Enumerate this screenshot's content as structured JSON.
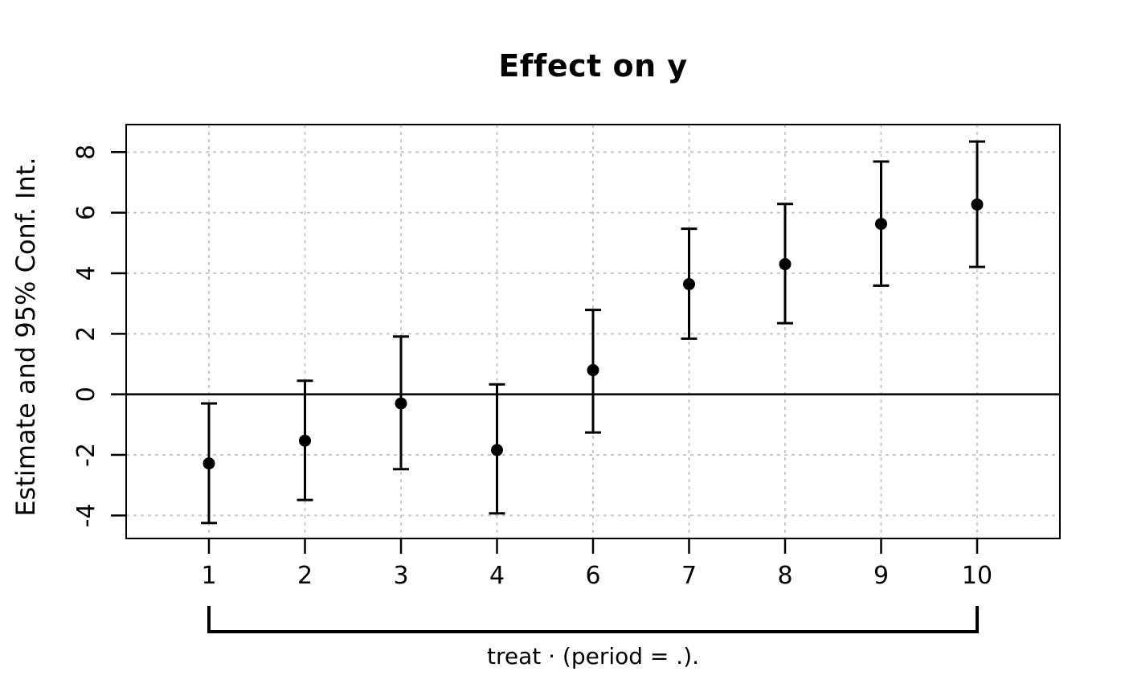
{
  "chart_data": {
    "type": "scatter",
    "subtype": "point-estimate-with-error-bars",
    "title": "Effect on y",
    "xlabel": "treat · (period = .).",
    "ylabel": "Estimate and 95% Conf. Int.",
    "categories": [
      "1",
      "2",
      "3",
      "4",
      "6",
      "7",
      "8",
      "9",
      "10"
    ],
    "series": [
      {
        "name": "estimate",
        "values": [
          -2.28,
          -1.53,
          -0.3,
          -1.84,
          0.8,
          3.64,
          4.3,
          5.63,
          6.27
        ]
      },
      {
        "name": "ci_low",
        "values": [
          -4.25,
          -3.49,
          -2.47,
          -3.93,
          -1.26,
          1.84,
          2.35,
          3.59,
          4.21
        ]
      },
      {
        "name": "ci_high",
        "values": [
          -0.3,
          0.45,
          1.91,
          0.33,
          2.79,
          5.47,
          6.29,
          7.69,
          8.35
        ]
      }
    ],
    "yticks": [
      -4,
      -2,
      0,
      2,
      4,
      6,
      8
    ],
    "ylim": [
      -4.76,
      8.91
    ],
    "grid": true,
    "grid_style": "dashed",
    "zero_line": true,
    "legend": "none",
    "colors": {
      "point": "#000000",
      "error_bar": "#000000",
      "axis": "#000000",
      "grid": "#c8c8c8",
      "background": "#ffffff"
    }
  }
}
